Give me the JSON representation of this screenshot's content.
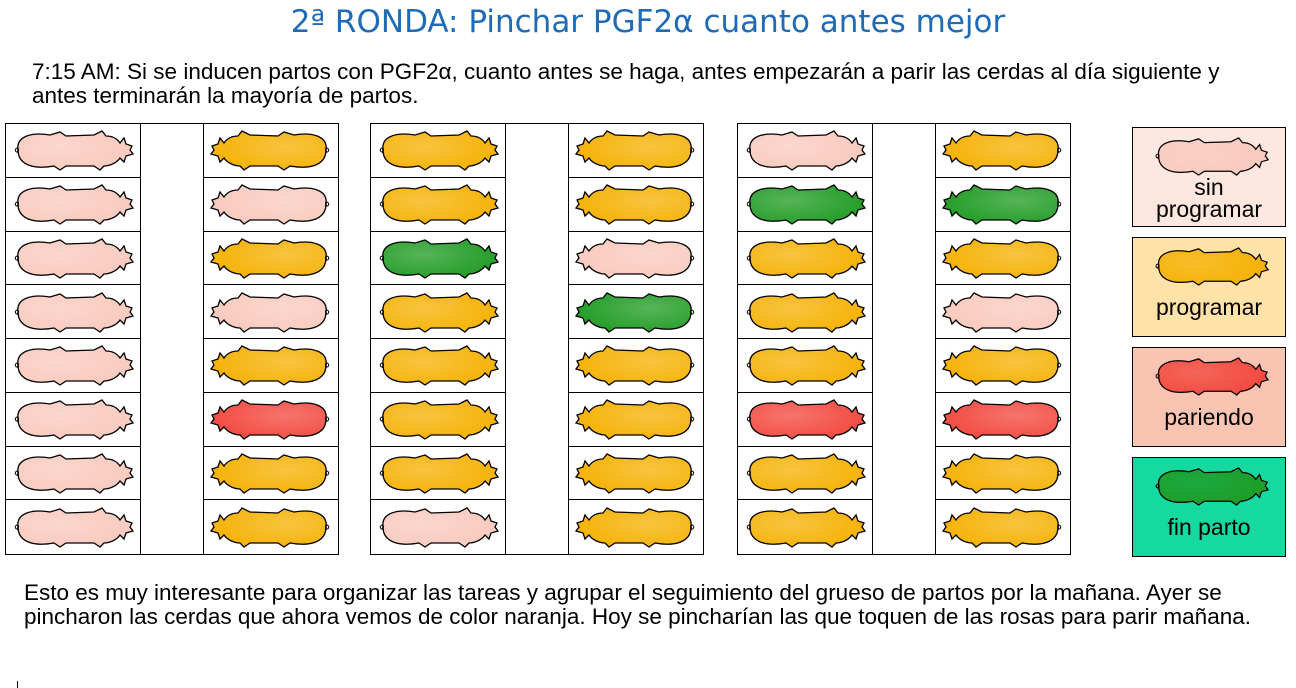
{
  "title": "2ª RONDA: Pinchar PGF2α  cuanto antes mejor",
  "intro": "7:15 AM: Si se inducen partos con PGF2α, cuanto antes se haga, antes empezarán a parir las cerdas al día siguiente y antes terminarán la mayoría de partos.",
  "footer": "Esto es muy interesante para organizar las tareas y agrupar el seguimiento del grueso de partos por la mañana. Ayer se pincharon las cerdas que ahora vemos de color naranja. Hoy se pincharían las que toquen de las rosas para parir mañana.",
  "colors": {
    "sin_programar": "#f9c9bd",
    "programar": "#f5b000",
    "pariendo": "#f2463c",
    "fin_parto": "#1e9a22"
  },
  "legend": [
    {
      "state": "sin_programar",
      "label_lines": [
        "sin",
        "programar"
      ],
      "bg": "#fde7df"
    },
    {
      "state": "programar",
      "label_lines": [
        "programar"
      ],
      "bg": "#ffe2a8"
    },
    {
      "state": "pariendo",
      "label_lines": [
        "pariendo"
      ],
      "bg": "#f9c4b2"
    },
    {
      "state": "fin_parto",
      "label_lines": [
        "fin parto"
      ],
      "bg": "#16d9a0"
    }
  ],
  "blocks": [
    {
      "left": [
        {
          "state": "sin_programar",
          "facing": "right"
        },
        {
          "state": "sin_programar",
          "facing": "right"
        },
        {
          "state": "sin_programar",
          "facing": "right"
        },
        {
          "state": "sin_programar",
          "facing": "right"
        },
        {
          "state": "sin_programar",
          "facing": "right"
        },
        {
          "state": "sin_programar",
          "facing": "right"
        },
        {
          "state": "sin_programar",
          "facing": "right"
        },
        {
          "state": "sin_programar",
          "facing": "right"
        }
      ],
      "right": [
        {
          "state": "programar",
          "facing": "left"
        },
        {
          "state": "sin_programar",
          "facing": "left"
        },
        {
          "state": "programar",
          "facing": "left"
        },
        {
          "state": "sin_programar",
          "facing": "left"
        },
        {
          "state": "programar",
          "facing": "left"
        },
        {
          "state": "pariendo",
          "facing": "left"
        },
        {
          "state": "programar",
          "facing": "left"
        },
        {
          "state": "programar",
          "facing": "left"
        }
      ]
    },
    {
      "left": [
        {
          "state": "programar",
          "facing": "right"
        },
        {
          "state": "programar",
          "facing": "right"
        },
        {
          "state": "fin_parto",
          "facing": "right"
        },
        {
          "state": "programar",
          "facing": "right"
        },
        {
          "state": "programar",
          "facing": "right"
        },
        {
          "state": "programar",
          "facing": "right"
        },
        {
          "state": "programar",
          "facing": "right"
        },
        {
          "state": "sin_programar",
          "facing": "right"
        }
      ],
      "right": [
        {
          "state": "programar",
          "facing": "left"
        },
        {
          "state": "programar",
          "facing": "left"
        },
        {
          "state": "sin_programar",
          "facing": "left"
        },
        {
          "state": "fin_parto",
          "facing": "left"
        },
        {
          "state": "programar",
          "facing": "left"
        },
        {
          "state": "programar",
          "facing": "left"
        },
        {
          "state": "programar",
          "facing": "left"
        },
        {
          "state": "programar",
          "facing": "left"
        }
      ]
    },
    {
      "left": [
        {
          "state": "sin_programar",
          "facing": "right"
        },
        {
          "state": "fin_parto",
          "facing": "right"
        },
        {
          "state": "programar",
          "facing": "right"
        },
        {
          "state": "programar",
          "facing": "right"
        },
        {
          "state": "programar",
          "facing": "right"
        },
        {
          "state": "pariendo",
          "facing": "right"
        },
        {
          "state": "programar",
          "facing": "right"
        },
        {
          "state": "programar",
          "facing": "right"
        }
      ],
      "right": [
        {
          "state": "programar",
          "facing": "left"
        },
        {
          "state": "fin_parto",
          "facing": "left"
        },
        {
          "state": "programar",
          "facing": "left"
        },
        {
          "state": "sin_programar",
          "facing": "left"
        },
        {
          "state": "programar",
          "facing": "left"
        },
        {
          "state": "pariendo",
          "facing": "left"
        },
        {
          "state": "programar",
          "facing": "left"
        },
        {
          "state": "programar",
          "facing": "left"
        }
      ]
    }
  ]
}
